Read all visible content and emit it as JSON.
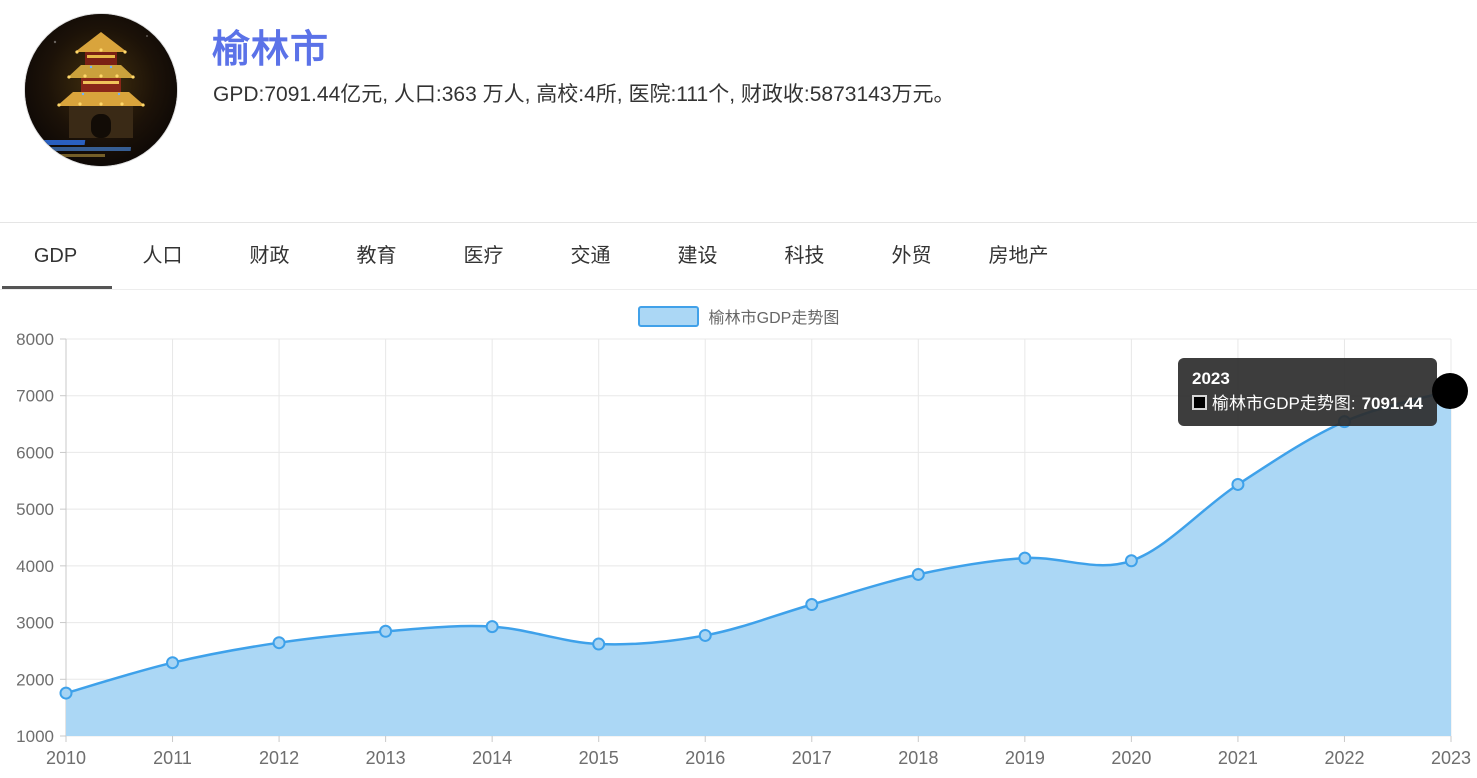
{
  "header": {
    "title": "榆林市",
    "subtitle": "GPD:7091.44亿元, 人口:363 万人, 高校:4所, 医院:111个, 财政收:5873143万元。"
  },
  "tabs": {
    "items": [
      {
        "label": "GDP",
        "active": true
      },
      {
        "label": "人口",
        "active": false
      },
      {
        "label": "财政",
        "active": false
      },
      {
        "label": "教育",
        "active": false
      },
      {
        "label": "医疗",
        "active": false
      },
      {
        "label": "交通",
        "active": false
      },
      {
        "label": "建设",
        "active": false
      },
      {
        "label": "科技",
        "active": false
      },
      {
        "label": "外贸",
        "active": false
      },
      {
        "label": "房地产",
        "active": false
      }
    ]
  },
  "legend": {
    "label": "榆林市GDP走势图"
  },
  "tooltip": {
    "title": "2023",
    "series_name": "榆林市GDP走势图:",
    "value": "7091.44"
  },
  "chart_data": {
    "type": "area",
    "title": "榆林市GDP走势图",
    "x": [
      2010,
      2011,
      2012,
      2013,
      2014,
      2015,
      2016,
      2017,
      2018,
      2019,
      2020,
      2021,
      2022,
      2023
    ],
    "values": [
      1756.67,
      2292.26,
      2645.0,
      2846.75,
      2928.62,
      2621.3,
      2773.05,
      3318.39,
      3848.62,
      4136.28,
      4089.66,
      5435.18,
      6543.65,
      7091.44
    ],
    "xlabel": "",
    "ylabel": "",
    "ylim": [
      1000,
      8000
    ],
    "yticks": [
      1000,
      2000,
      3000,
      4000,
      5000,
      6000,
      7000,
      8000
    ],
    "grid": true,
    "smooth": true,
    "legend_position": "top-center",
    "highlighted_point": {
      "x": 2023,
      "value": 7091.44
    },
    "colors": {
      "line": "#3ea1ea",
      "fill": "#abd7f5",
      "marker_fill": "#a6d4f4",
      "grid": "#e8e8e8",
      "axis": "#c9c9c9",
      "tick_label": "#6e6e6e"
    }
  },
  "colors": {
    "title": "#5b72e8",
    "tab_active_underline": "#555555",
    "tooltip_bg": "rgba(44,44,44,0.92)"
  }
}
